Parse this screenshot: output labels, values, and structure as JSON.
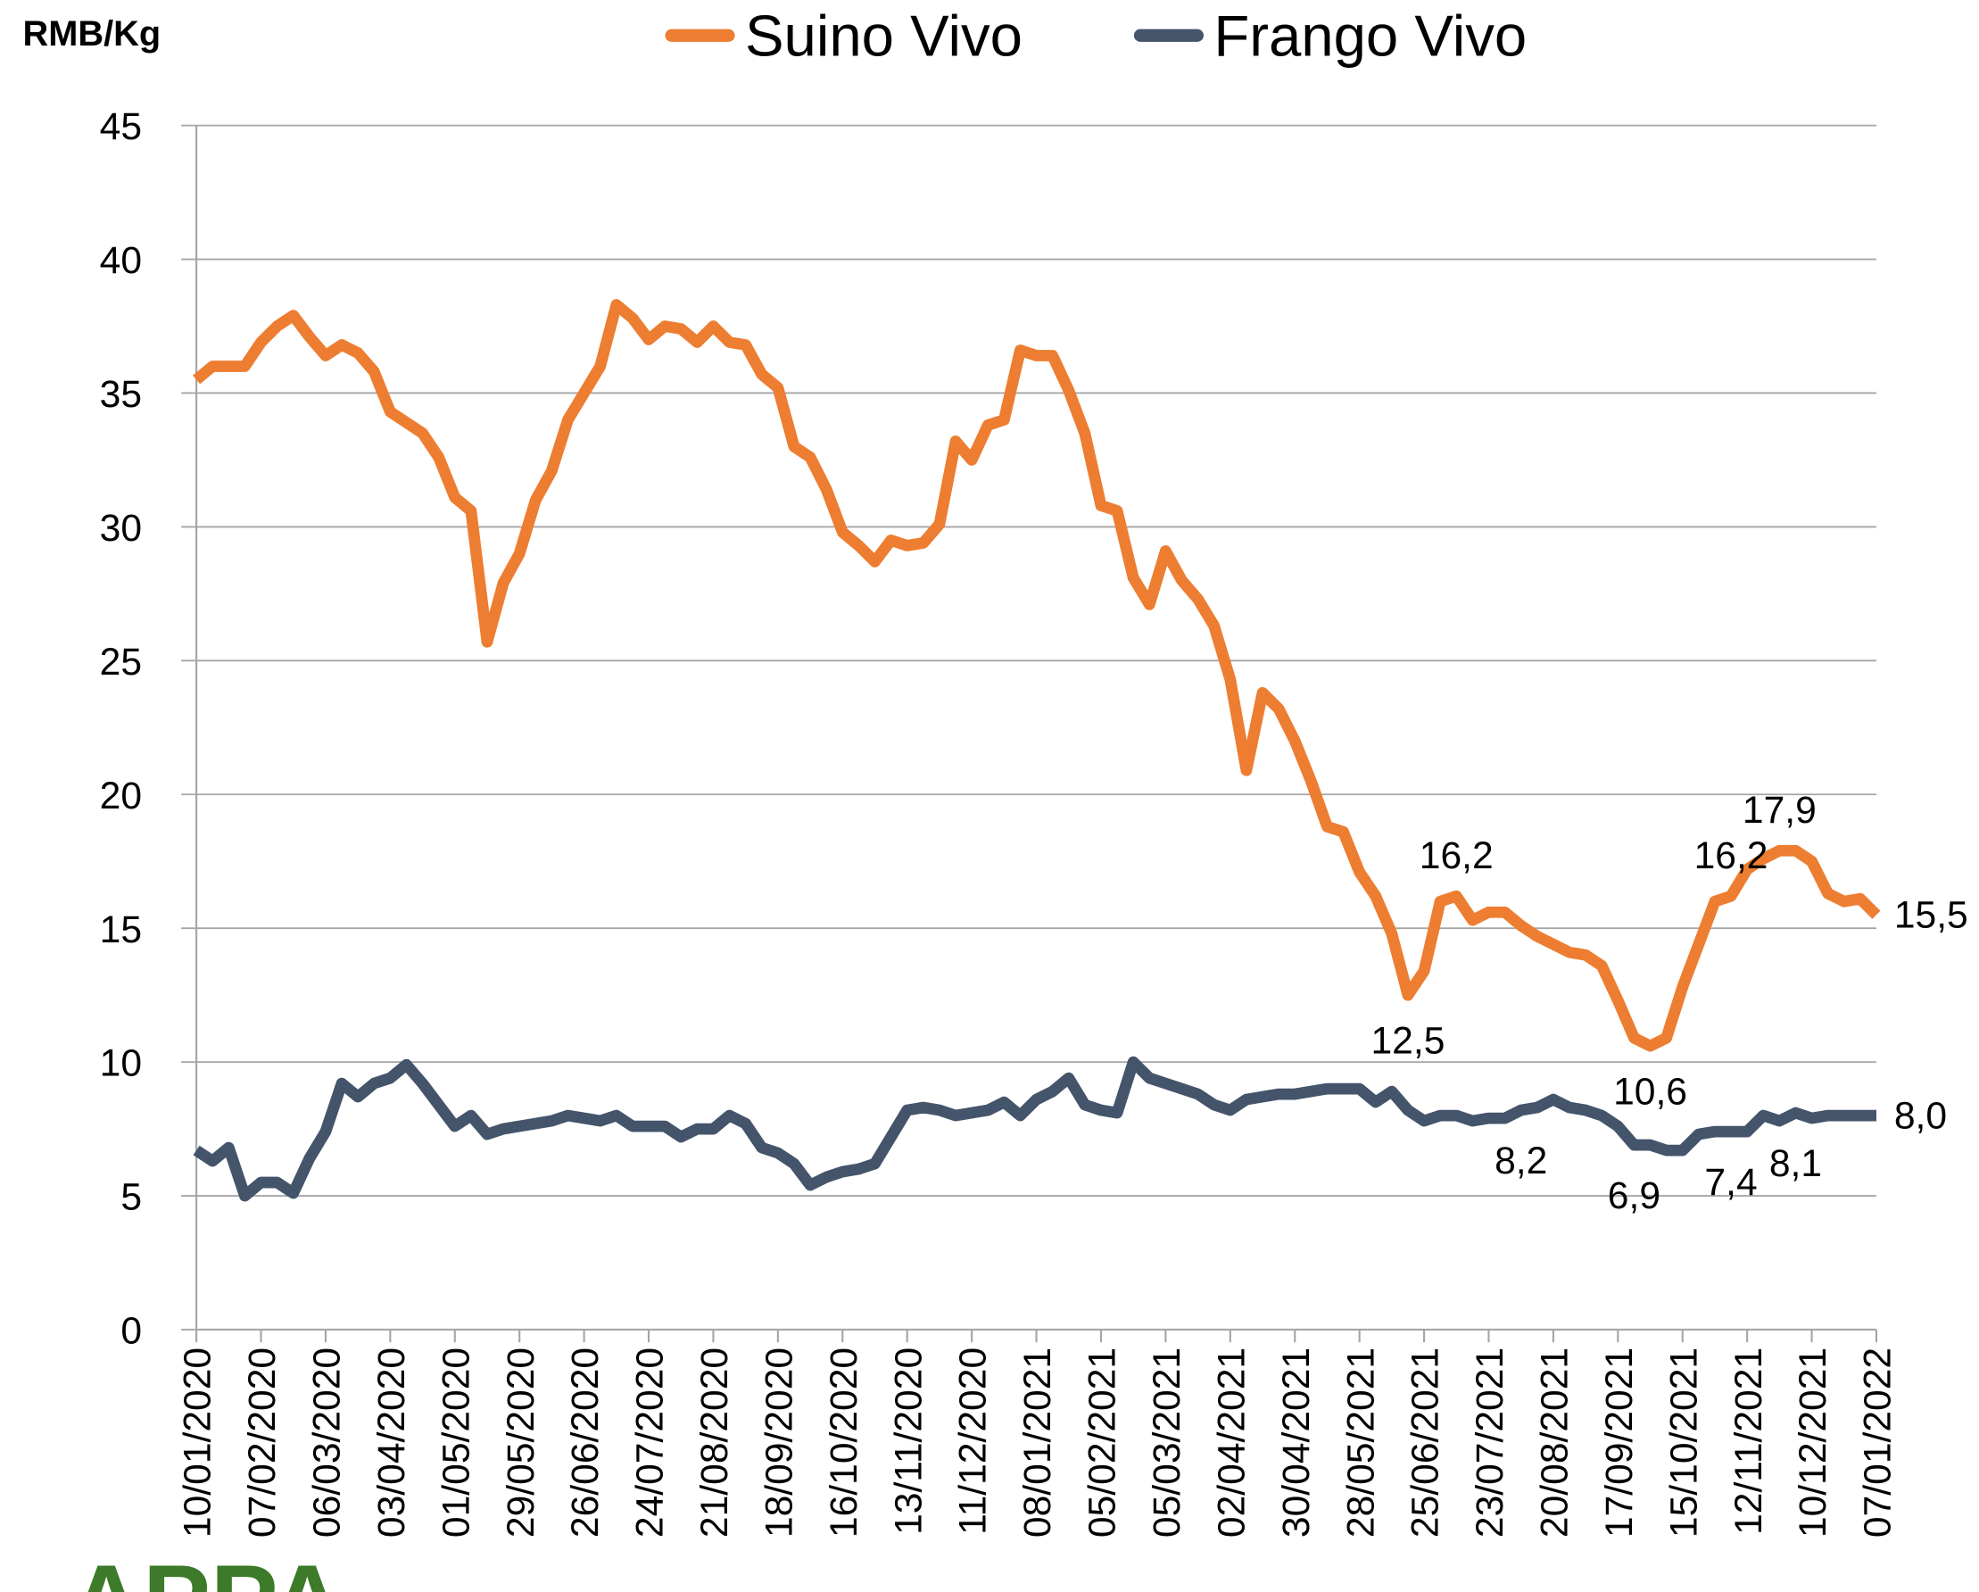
{
  "chart_data": {
    "type": "line",
    "y_axis_label": "RMB/Kg",
    "logo_text": "APPA",
    "categories": [
      "10/01/2020",
      null,
      null,
      null,
      "07/02/2020",
      null,
      null,
      null,
      "06/03/2020",
      null,
      null,
      null,
      "03/04/2020",
      null,
      null,
      null,
      "01/05/2020",
      null,
      null,
      null,
      "29/05/2020",
      null,
      null,
      null,
      "26/06/2020",
      null,
      null,
      null,
      "24/07/2020",
      null,
      null,
      null,
      "21/08/2020",
      null,
      null,
      null,
      "18/09/2020",
      null,
      null,
      null,
      "16/10/2020",
      null,
      null,
      null,
      "13/11/2020",
      null,
      null,
      null,
      "11/12/2020",
      null,
      null,
      null,
      "08/01/2021",
      null,
      null,
      null,
      "05/02/2021",
      null,
      null,
      null,
      "05/03/2021",
      null,
      null,
      null,
      "02/04/2021",
      null,
      null,
      null,
      "30/04/2021",
      null,
      null,
      null,
      "28/05/2021",
      null,
      null,
      null,
      "25/06/2021",
      null,
      null,
      null,
      "23/07/2021",
      null,
      null,
      null,
      "20/08/2021",
      null,
      null,
      null,
      "17/09/2021",
      null,
      null,
      null,
      "15/10/2021",
      null,
      null,
      null,
      "12/11/2021",
      null,
      null,
      null,
      "10/12/2021",
      null,
      null,
      null,
      "07/01/2022"
    ],
    "series": [
      {
        "name": "Suino Vivo",
        "color": "#ED7D31",
        "values": [
          35.5,
          36.0,
          36.0,
          36.0,
          36.9,
          37.5,
          37.9,
          37.1,
          36.4,
          36.8,
          36.5,
          35.8,
          34.3,
          33.9,
          33.5,
          32.6,
          31.1,
          30.6,
          25.7,
          27.9,
          29.0,
          31.0,
          32.1,
          34.0,
          35.0,
          36.0,
          38.3,
          37.8,
          37.0,
          37.5,
          37.4,
          36.9,
          37.5,
          36.9,
          36.8,
          35.7,
          35.2,
          33.0,
          32.6,
          31.4,
          29.8,
          29.3,
          28.7,
          29.5,
          29.3,
          29.4,
          30.1,
          33.2,
          32.5,
          33.8,
          34.0,
          36.6,
          36.4,
          36.4,
          35.1,
          33.5,
          30.8,
          30.6,
          28.1,
          27.1,
          29.1,
          28.0,
          27.3,
          26.3,
          24.3,
          20.9,
          23.8,
          23.2,
          22.0,
          20.5,
          18.8,
          18.6,
          17.1,
          16.2,
          14.8,
          12.5,
          13.4,
          16.0,
          16.2,
          15.3,
          15.6,
          15.6,
          15.1,
          14.7,
          14.4,
          14.1,
          14.0,
          13.6,
          12.3,
          10.9,
          10.6,
          10.9,
          12.8,
          14.4,
          16.0,
          16.2,
          17.2,
          17.6,
          17.9,
          17.9,
          17.5,
          16.3,
          16.0,
          16.1,
          15.5
        ],
        "value_labels": [
          null,
          null,
          null,
          null,
          null,
          null,
          null,
          null,
          null,
          null,
          null,
          null,
          null,
          null,
          null,
          null,
          null,
          null,
          null,
          null,
          null,
          null,
          null,
          null,
          null,
          null,
          null,
          null,
          null,
          null,
          null,
          null,
          null,
          null,
          null,
          null,
          null,
          null,
          null,
          null,
          null,
          null,
          null,
          null,
          null,
          null,
          null,
          null,
          null,
          null,
          null,
          null,
          null,
          null,
          null,
          null,
          null,
          null,
          null,
          null,
          null,
          null,
          null,
          null,
          null,
          null,
          null,
          null,
          null,
          null,
          null,
          null,
          null,
          null,
          null,
          "12,5",
          null,
          null,
          "16,2",
          null,
          null,
          null,
          null,
          null,
          null,
          null,
          null,
          null,
          null,
          null,
          "10,6",
          null,
          null,
          null,
          null,
          "16,2",
          null,
          null,
          "17,9",
          null,
          null,
          null,
          null,
          null,
          "15,5"
        ]
      },
      {
        "name": "Frango Vivo",
        "color": "#44546A",
        "values": [
          6.7,
          6.3,
          6.8,
          5.0,
          5.5,
          5.5,
          5.1,
          6.4,
          7.4,
          9.2,
          8.7,
          9.2,
          9.4,
          9.9,
          9.2,
          8.4,
          7.6,
          8.0,
          7.3,
          7.5,
          7.6,
          7.7,
          7.8,
          8.0,
          7.9,
          7.8,
          8.0,
          7.6,
          7.6,
          7.6,
          7.2,
          7.5,
          7.5,
          8.0,
          7.7,
          6.8,
          6.6,
          6.2,
          5.4,
          5.7,
          5.9,
          6.0,
          6.2,
          7.2,
          8.2,
          8.3,
          8.2,
          8.0,
          8.1,
          8.2,
          8.5,
          8.0,
          8.6,
          8.9,
          9.4,
          8.4,
          8.2,
          8.1,
          10.0,
          9.4,
          9.2,
          9.0,
          8.8,
          8.4,
          8.2,
          8.6,
          8.7,
          8.8,
          8.8,
          8.9,
          9.0,
          9.0,
          9.0,
          8.5,
          8.9,
          8.2,
          7.8,
          8.0,
          8.0,
          7.8,
          7.9,
          7.9,
          8.2,
          8.3,
          8.6,
          8.3,
          8.2,
          8.0,
          7.6,
          6.9,
          6.9,
          6.7,
          6.7,
          7.3,
          7.4,
          7.4,
          7.4,
          8.0,
          7.8,
          8.1,
          7.9,
          8.0,
          8.0,
          8.0,
          8.0
        ],
        "value_labels": [
          null,
          null,
          null,
          null,
          null,
          null,
          null,
          null,
          null,
          null,
          null,
          null,
          null,
          null,
          null,
          null,
          null,
          null,
          null,
          null,
          null,
          null,
          null,
          null,
          null,
          null,
          null,
          null,
          null,
          null,
          null,
          null,
          null,
          null,
          null,
          null,
          null,
          null,
          null,
          null,
          null,
          null,
          null,
          null,
          null,
          null,
          null,
          null,
          null,
          null,
          null,
          null,
          null,
          null,
          null,
          null,
          null,
          null,
          null,
          null,
          null,
          null,
          null,
          null,
          null,
          null,
          null,
          null,
          null,
          null,
          null,
          null,
          null,
          null,
          null,
          null,
          null,
          null,
          null,
          null,
          null,
          null,
          "8,2",
          null,
          null,
          null,
          null,
          null,
          null,
          "6,9",
          null,
          null,
          null,
          null,
          null,
          "7,4",
          null,
          null,
          null,
          "8,1",
          null,
          null,
          null,
          null,
          "8,0"
        ]
      }
    ],
    "ylim": [
      0,
      45
    ],
    "yticks": [
      0,
      5,
      10,
      15,
      20,
      25,
      30,
      35,
      40,
      45
    ],
    "grid": true,
    "legend": "top"
  }
}
